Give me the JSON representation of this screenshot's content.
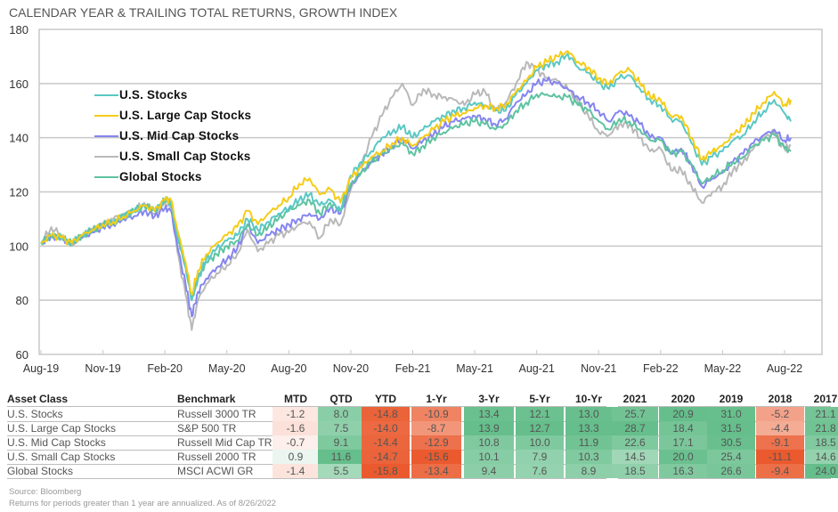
{
  "title": "CALENDAR YEAR & TRAILING TOTAL RETURNS, GROWTH INDEX",
  "chart_data": {
    "type": "line",
    "title": "CALENDAR YEAR & TRAILING TOTAL RETURNS, GROWTH INDEX",
    "xlabel": "",
    "ylabel": "",
    "ylim": [
      60,
      180
    ],
    "yticks": [
      60,
      80,
      100,
      120,
      140,
      160,
      180
    ],
    "xticks": [
      "Aug-19",
      "Nov-19",
      "Feb-20",
      "May-20",
      "Aug-20",
      "Nov-20",
      "Feb-21",
      "May-21",
      "Aug-21",
      "Nov-21",
      "Feb-22",
      "May-22",
      "Aug-22"
    ],
    "grid": "horizontal",
    "legend": "upper-left",
    "x_index_note": "x values are months since Aug-19 (0 = Aug-19, 36 = Aug-22)",
    "x": [
      0,
      0.5,
      1,
      1.5,
      2,
      2.5,
      3,
      3.5,
      4,
      4.5,
      5,
      5.5,
      6,
      6.3,
      6.6,
      7,
      7.3,
      7.6,
      8,
      8.5,
      9,
      9.5,
      10,
      10.5,
      11,
      11.5,
      12,
      12.5,
      13,
      13.5,
      14,
      14.5,
      15,
      15.5,
      16,
      16.5,
      17,
      17.5,
      18,
      18.5,
      19,
      19.5,
      20,
      20.5,
      21,
      21.5,
      22,
      22.5,
      23,
      23.5,
      24,
      24.5,
      25,
      25.5,
      26,
      26.5,
      27,
      27.5,
      28,
      28.5,
      29,
      29.5,
      30,
      30.5,
      31,
      31.5,
      32,
      32.5,
      33,
      33.5,
      34,
      34.5,
      35,
      35.5,
      36,
      36.3
    ],
    "series": [
      {
        "name": "U.S. Stocks",
        "color": "#5bc8c4",
        "values": [
          101,
          104,
          103,
          101,
          104,
          106,
          108,
          109,
          111,
          113,
          115,
          113,
          117,
          116,
          104,
          92,
          80,
          88,
          95,
          99,
          102,
          104,
          110,
          106,
          109,
          112,
          114,
          117,
          119,
          115,
          117,
          113,
          126,
          131,
          135,
          140,
          142,
          144,
          140,
          143,
          146,
          148,
          150,
          151,
          153,
          152,
          150,
          150,
          156,
          160,
          165,
          167,
          168,
          171,
          166,
          164,
          160,
          158,
          162,
          163,
          158,
          154,
          152,
          147,
          146,
          138,
          130,
          133,
          135,
          139,
          141,
          146,
          150,
          154,
          149,
          146
        ]
      },
      {
        "name": "U.S. Large Cap Stocks",
        "color": "#f5cc17",
        "values": [
          101,
          104,
          103,
          101,
          104,
          106,
          108,
          109,
          111,
          113,
          115,
          113,
          117,
          117,
          106,
          94,
          82,
          91,
          97,
          101,
          104,
          107,
          113,
          108,
          112,
          115,
          118,
          123,
          125,
          119,
          121,
          116,
          125,
          129,
          133,
          135,
          138,
          140,
          137,
          140,
          143,
          146,
          148,
          149,
          151,
          152,
          151,
          152,
          157,
          161,
          166,
          168,
          170,
          172,
          168,
          166,
          162,
          160,
          164,
          165,
          160,
          155,
          154,
          148,
          148,
          140,
          132,
          135,
          137,
          141,
          144,
          149,
          153,
          157,
          152,
          154
        ]
      },
      {
        "name": "U.S. Mid Cap Stocks",
        "color": "#8585f0",
        "values": [
          101,
          104,
          103,
          101,
          103,
          105,
          107,
          108,
          110,
          111,
          113,
          111,
          114,
          113,
          100,
          86,
          74,
          83,
          88,
          92,
          95,
          99,
          108,
          101,
          104,
          106,
          108,
          110,
          112,
          110,
          114,
          112,
          122,
          127,
          131,
          134,
          137,
          140,
          136,
          139,
          141,
          144,
          146,
          147,
          148,
          147,
          145,
          147,
          153,
          156,
          160,
          161,
          160,
          158,
          155,
          153,
          150,
          146,
          150,
          148,
          145,
          140,
          140,
          134,
          136,
          130,
          122,
          125,
          127,
          131,
          134,
          138,
          141,
          143,
          139,
          140
        ]
      },
      {
        "name": "U.S. Small Cap Stocks",
        "color": "#b9b9b9",
        "values": [
          101,
          107,
          104,
          100,
          104,
          106,
          108,
          110,
          112,
          113,
          116,
          112,
          116,
          114,
          98,
          82,
          69,
          80,
          86,
          90,
          93,
          97,
          106,
          98,
          101,
          104,
          105,
          108,
          109,
          103,
          110,
          108,
          121,
          130,
          140,
          148,
          155,
          160,
          152,
          158,
          156,
          155,
          154,
          152,
          156,
          157,
          150,
          153,
          160,
          168,
          165,
          162,
          161,
          158,
          153,
          148,
          142,
          141,
          145,
          145,
          140,
          135,
          136,
          128,
          128,
          122,
          116,
          120,
          122,
          128,
          131,
          136,
          140,
          142,
          136,
          137
        ]
      },
      {
        "name": "Global Stocks",
        "color": "#5ec3a0",
        "values": [
          101,
          104,
          103,
          101,
          104,
          106,
          108,
          109,
          111,
          113,
          115,
          113,
          117,
          116,
          104,
          93,
          80,
          88,
          94,
          97,
          100,
          102,
          108,
          104,
          107,
          110,
          113,
          115,
          117,
          112,
          116,
          113,
          123,
          127,
          131,
          134,
          136,
          138,
          134,
          137,
          140,
          142,
          144,
          145,
          146,
          145,
          143,
          145,
          150,
          153,
          156,
          156,
          155,
          155,
          152,
          150,
          146,
          143,
          147,
          146,
          143,
          139,
          139,
          134,
          135,
          130,
          123,
          126,
          128,
          131,
          133,
          137,
          139,
          141,
          136,
          135
        ]
      }
    ]
  },
  "table": {
    "headers": {
      "asset_class": "Asset Class",
      "benchmark": "Benchmark",
      "cols": [
        "MTD",
        "QTD",
        "YTD",
        "1-Yr",
        "3-Yr",
        "5-Yr",
        "10-Yr",
        "2021",
        "2020",
        "2019",
        "2018",
        "2017"
      ]
    },
    "rows": [
      {
        "asset_class": "U.S. Stocks",
        "benchmark": "Russell 3000 TR",
        "values": [
          "-1.2",
          "8.0",
          "-14.8",
          "-10.9",
          "13.4",
          "12.1",
          "13.0",
          "25.7",
          "20.9",
          "31.0",
          "-5.2",
          "21.1"
        ]
      },
      {
        "asset_class": "U.S. Large Cap Stocks",
        "benchmark": "S&P 500 TR",
        "values": [
          "-1.6",
          "7.5",
          "-14.0",
          "-8.7",
          "13.9",
          "12.7",
          "13.3",
          "28.7",
          "18.4",
          "31.5",
          "-4.4",
          "21.8"
        ]
      },
      {
        "asset_class": "U.S. Mid Cap Stocks",
        "benchmark": "Russell Mid Cap TR",
        "values": [
          "-0.7",
          "9.1",
          "-14.4",
          "-12.9",
          "10.8",
          "10.0",
          "11.9",
          "22.6",
          "17.1",
          "30.5",
          "-9.1",
          "18.5"
        ]
      },
      {
        "asset_class": "U.S. Small Cap Stocks",
        "benchmark": "Russell 2000 TR",
        "values": [
          "0.9",
          "11.6",
          "-14.7",
          "-15.6",
          "10.1",
          "7.9",
          "10.3",
          "14.5",
          "20.0",
          "25.4",
          "-11.1",
          "14.6"
        ]
      },
      {
        "asset_class": "Global Stocks",
        "benchmark": "MSCI ACWI GR",
        "values": [
          "-1.4",
          "5.5",
          "-15.8",
          "-13.4",
          "9.4",
          "7.6",
          "8.9",
          "18.5",
          "16.3",
          "26.6",
          "-9.4",
          "24.0"
        ]
      }
    ],
    "colors": {
      "positive_max": "#3fae6e",
      "negative_max": "#ea5a2e",
      "neutral": "#ffffff"
    }
  },
  "footer": {
    "source": "Source: Bloomberg",
    "note": "Returns for periods greater than 1 year are annualized. As of 8/26/2022"
  }
}
